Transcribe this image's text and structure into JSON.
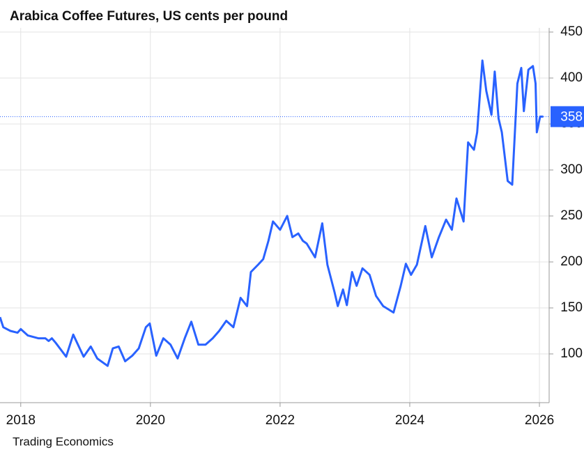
{
  "chart_data": {
    "type": "line",
    "title": "Arabica Coffee Futures, US cents per pound",
    "source": "Trading Economics",
    "x": [
      2017.68,
      2017.73,
      2017.84,
      2017.95,
      2018.0,
      2018.11,
      2018.27,
      2018.38,
      2018.43,
      2018.48,
      2018.54,
      2018.7,
      2018.81,
      2018.91,
      2018.97,
      2019.08,
      2019.18,
      2019.34,
      2019.42,
      2019.51,
      2019.61,
      2019.72,
      2019.82,
      2019.93,
      2019.99,
      2020.09,
      2020.2,
      2020.31,
      2020.42,
      2020.53,
      2020.63,
      2020.74,
      2020.85,
      2020.96,
      2021.06,
      2021.17,
      2021.28,
      2021.39,
      2021.49,
      2021.55,
      2021.66,
      2021.74,
      2021.82,
      2021.89,
      2022.0,
      2022.11,
      2022.19,
      2022.28,
      2022.35,
      2022.41,
      2022.54,
      2022.65,
      2022.73,
      2022.84,
      2022.89,
      2022.97,
      2023.03,
      2023.11,
      2023.18,
      2023.27,
      2023.38,
      2023.48,
      2023.59,
      2023.75,
      2023.86,
      2023.94,
      2024.02,
      2024.11,
      2024.24,
      2024.34,
      2024.45,
      2024.56,
      2024.65,
      2024.72,
      2024.83,
      2024.9,
      2024.99,
      2025.04,
      2025.12,
      2025.18,
      2025.26,
      2025.31,
      2025.37,
      2025.42,
      2025.51,
      2025.58,
      2025.66,
      2025.72,
      2025.76,
      2025.83,
      2025.9,
      2025.94,
      2025.96,
      2026.01,
      2026.06
    ],
    "series": [
      {
        "name": "Arabica Coffee",
        "color": "#2962ff",
        "values": [
          140,
          129,
          125,
          123,
          127,
          120,
          117,
          117,
          114,
          117,
          112,
          97,
          121,
          106,
          97,
          108,
          95,
          87,
          106,
          108,
          92,
          98,
          106,
          129,
          133,
          98,
          117,
          110,
          95,
          117,
          135,
          110,
          110,
          117,
          125,
          136,
          129,
          161,
          152,
          189,
          197,
          203,
          223,
          244,
          235,
          250,
          227,
          231,
          223,
          220,
          205,
          242,
          197,
          167,
          152,
          170,
          153,
          189,
          174,
          193,
          186,
          163,
          152,
          145,
          174,
          198,
          186,
          197,
          239,
          205,
          227,
          246,
          235,
          269,
          244,
          330,
          322,
          341,
          419,
          386,
          360,
          407,
          356,
          341,
          288,
          284,
          394,
          411,
          364,
          409,
          413,
          394,
          341,
          358,
          358
        ]
      }
    ],
    "last_value": 358,
    "xlim": [
      2017.68,
      2026.15
    ],
    "xticks": [
      2018,
      2020,
      2022,
      2024,
      2026
    ],
    "ylim": [
      50,
      450
    ],
    "yticks": [
      100,
      150,
      200,
      250,
      300,
      350,
      400,
      450
    ],
    "grid": true
  }
}
